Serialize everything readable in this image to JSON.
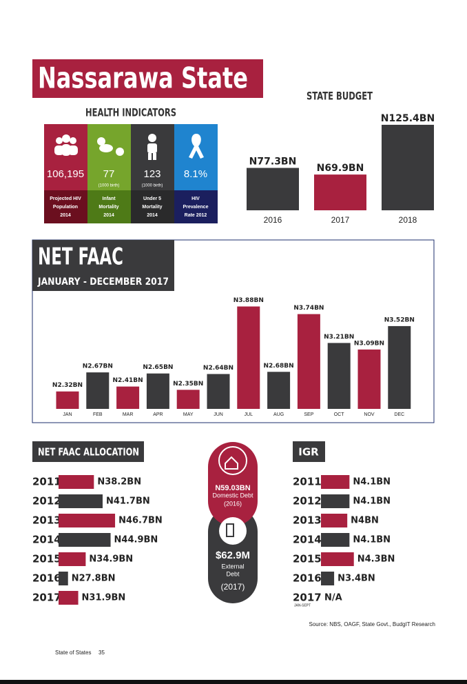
{
  "header": {
    "title": "Nassarawa State"
  },
  "health": {
    "title": "HEALTH INDICATORS",
    "tiles": [
      {
        "value": "106,195",
        "caption": [
          "Projected HIV",
          "Population",
          "2014"
        ]
      },
      {
        "value": "77",
        "note": "(1000 birth)",
        "caption": [
          "Infant",
          "Mortality",
          "2014"
        ]
      },
      {
        "value": "123",
        "note": "(1000 birth)",
        "caption": [
          "Under 5",
          "Mortality",
          "2014"
        ]
      },
      {
        "value": "8.1%",
        "caption": [
          "HIV",
          "Prevalence",
          "Rate 2012"
        ]
      }
    ]
  },
  "debt": {
    "domestic": {
      "value": "N59.03BN",
      "label": "Domestic Debt",
      "year": "(2016)"
    },
    "external": {
      "value": "$62.9M",
      "label": [
        "External",
        "Debt"
      ],
      "year": "(2017)"
    }
  },
  "chart_data": [
    {
      "type": "bar",
      "title": "STATE BUDGET",
      "categories": [
        "2016",
        "2017",
        "2018"
      ],
      "values": [
        77.3,
        69.9,
        125.4
      ],
      "value_labels": [
        "N77.3BN",
        "N69.9BN",
        "N125.4BN"
      ],
      "colors": [
        "#3a3a3c",
        "#a8213f",
        "#3a3a3c"
      ],
      "ylim": [
        30,
        130
      ]
    },
    {
      "type": "bar",
      "title": "NET FAAC",
      "subtitle": "JANUARY - DECEMBER 2017",
      "categories": [
        "JAN",
        "FEB",
        "MAR",
        "APR",
        "MAY",
        "JUN",
        "JUL",
        "AUG",
        "SEP",
        "OCT",
        "NOV",
        "DEC"
      ],
      "values": [
        2.32,
        2.67,
        2.41,
        2.65,
        2.35,
        2.64,
        3.88,
        2.68,
        3.74,
        3.21,
        3.09,
        3.52
      ],
      "value_labels": [
        "N2.32BN",
        "N2.67BN",
        "N2.41BN",
        "N2.65BN",
        "N2.35BN",
        "N2.64BN",
        "N3.88BN",
        "N2.68BN",
        "N3.74BN",
        "N3.21BN",
        "N3.09BN",
        "N3.52BN"
      ],
      "colors": [
        "#a8213f",
        "#3a3a3c",
        "#a8213f",
        "#3a3a3c",
        "#a8213f",
        "#3a3a3c",
        "#a8213f",
        "#3a3a3c",
        "#a8213f",
        "#3a3a3c",
        "#a8213f",
        "#3a3a3c"
      ],
      "ylim": [
        2,
        4
      ]
    },
    {
      "type": "bar",
      "orientation": "horizontal",
      "title": "NET FAAC ALLOCATION",
      "categories": [
        "2011",
        "2012",
        "2013",
        "2014",
        "2015",
        "2016",
        "2017"
      ],
      "values": [
        38.2,
        41.7,
        46.7,
        44.9,
        34.9,
        27.8,
        31.9
      ],
      "value_labels": [
        "N38.2BN",
        "N41.7BN",
        "N46.7BN",
        "N44.9BN",
        "N34.9BN",
        "N27.8BN",
        "N31.9BN"
      ],
      "colors": [
        "#a8213f",
        "#3a3a3c",
        "#a8213f",
        "#3a3a3c",
        "#a8213f",
        "#3a3a3c",
        "#a8213f"
      ],
      "xlim": [
        24,
        50
      ]
    },
    {
      "type": "bar",
      "orientation": "horizontal",
      "title": "IGR",
      "categories": [
        "2011",
        "2012",
        "2013",
        "2014",
        "2015",
        "2016",
        "2017"
      ],
      "category_sublabels": [
        null,
        null,
        null,
        null,
        null,
        null,
        "JAN-SEPT"
      ],
      "values": [
        4.1,
        4.1,
        4,
        4.1,
        4.3,
        3.4,
        null
      ],
      "value_labels": [
        "N4.1BN",
        "N4.1BN",
        "N4BN",
        "N4.1BN",
        "N4.3BN",
        "N3.4BN",
        "N/A"
      ],
      "colors": [
        "#a8213f",
        "#3a3a3c",
        "#a8213f",
        "#3a3a3c",
        "#a8213f",
        "#3a3a3c",
        "#a8213f"
      ],
      "xlim": [
        2.8,
        5
      ]
    }
  ],
  "source": "Source: NBS, OAGF, State Govt., BudgIT Research",
  "footer": {
    "text": "State of States",
    "page": "35"
  }
}
